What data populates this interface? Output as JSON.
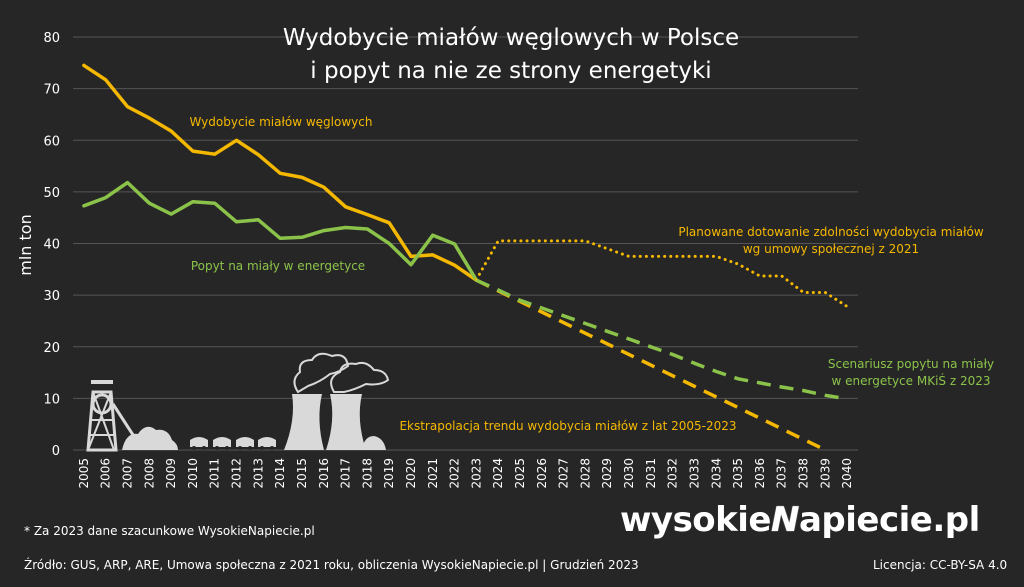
{
  "chart_data": {
    "type": "line",
    "title_lines": [
      "Wydobycie miałów węglowych w Polsce",
      "i popyt na nie ze strony energetyki"
    ],
    "ylabel": "mln ton",
    "xlabel": "",
    "ylim": [
      0,
      80
    ],
    "yticks": [
      0,
      10,
      20,
      30,
      40,
      50,
      60,
      70,
      80
    ],
    "x": [
      2005,
      2006,
      2007,
      2008,
      2009,
      2010,
      2011,
      2012,
      2013,
      2014,
      2015,
      2016,
      2017,
      2018,
      2019,
      2020,
      2021,
      2022,
      2023,
      2024,
      2025,
      2026,
      2027,
      2028,
      2029,
      2030,
      2031,
      2032,
      2033,
      2034,
      2035,
      2036,
      2037,
      2038,
      2039,
      2040
    ],
    "grid": true,
    "legend": "none",
    "series": [
      {
        "name": "Wydobycie miałów węglowych",
        "style": "solid",
        "color": "#f5b800",
        "x": [
          2005,
          2006,
          2007,
          2008,
          2009,
          2010,
          2011,
          2012,
          2013,
          2014,
          2015,
          2016,
          2017,
          2018,
          2019,
          2020,
          2021,
          2022,
          2023
        ],
        "values": [
          74.5,
          71.7,
          66.5,
          64.3,
          61.8,
          57.9,
          57.3,
          60.0,
          57.2,
          53.6,
          52.8,
          50.9,
          47.1,
          45.6,
          44.0,
          37.5,
          37.8,
          35.8,
          32.9
        ]
      },
      {
        "name": "Popyt na miały w energetyce",
        "style": "solid",
        "color": "#8bc34a",
        "x": [
          2005,
          2006,
          2007,
          2008,
          2009,
          2010,
          2011,
          2012,
          2013,
          2014,
          2015,
          2016,
          2017,
          2018,
          2019,
          2020,
          2021,
          2022,
          2023
        ],
        "values": [
          47.3,
          48.9,
          51.8,
          47.8,
          45.7,
          48.1,
          47.8,
          44.2,
          44.6,
          41.0,
          41.2,
          42.5,
          43.1,
          42.8,
          40.0,
          35.9,
          41.6,
          39.9,
          32.9
        ]
      },
      {
        "name": "Planowane dotowanie zdolności wydobycia miałów wg umowy społecznej z 2021",
        "style": "dotted",
        "color": "#f5b800",
        "x": [
          2023,
          2024,
          2025,
          2026,
          2027,
          2028,
          2029,
          2030,
          2031,
          2032,
          2033,
          2034,
          2035,
          2036,
          2037,
          2038,
          2039,
          2040
        ],
        "values": [
          33.0,
          40.5,
          40.5,
          40.5,
          40.5,
          40.5,
          39.0,
          37.5,
          37.5,
          37.5,
          37.5,
          37.5,
          36.0,
          33.7,
          33.7,
          30.5,
          30.5,
          27.8
        ]
      },
      {
        "name": "Ekstrapolacja trendu wydobycia miałów z lat 2005-2023",
        "style": "dashed",
        "color": "#f5b800",
        "x": [
          2023,
          2039
        ],
        "values": [
          32.9,
          0
        ]
      },
      {
        "name": "Scenariusz popytu na miały w energetyce MKiŚ z 2023",
        "style": "dashed",
        "color": "#8bc34a",
        "x": [
          2023,
          2024,
          2025,
          2026,
          2027,
          2028,
          2029,
          2030,
          2031,
          2032,
          2033,
          2034,
          2035,
          2036,
          2037,
          2038,
          2039,
          2040
        ],
        "values": [
          32.9,
          31.0,
          29.0,
          27.5,
          26.0,
          24.5,
          23.0,
          21.5,
          20.0,
          18.5,
          16.8,
          15.2,
          13.8,
          13.0,
          12.2,
          11.5,
          10.6,
          9.9
        ]
      }
    ],
    "annotations": [
      {
        "lines": [
          "Wydobycie miałów węglowych"
        ],
        "color": "#f5b800"
      },
      {
        "lines": [
          "Popyt na miały w energetyce"
        ],
        "color": "#8bc34a"
      },
      {
        "lines": [
          "Planowane dotowanie zdolności wydobycia miałów",
          "wg umowy społecznej z 2021"
        ],
        "color": "#f5b800"
      },
      {
        "lines": [
          "Scenariusz popytu na miały",
          "w energetyce MKiŚ z 2023"
        ],
        "color": "#8bc34a"
      },
      {
        "lines": [
          "Ekstrapolacja trendu wydobycia miałów z lat 2005-2023"
        ],
        "color": "#f5b800"
      }
    ]
  },
  "footer": {
    "note": "* Za 2023 dane szacunkowe WysokieNapiecie.pl",
    "source": "Źródło: GUS, ARP, ARE, Umowa społeczna z 2021 roku, obliczenia WysokieNapiecie.pl  |  Grudzień 2023",
    "license": "Licencja: CC-BY-SA 4.0"
  },
  "logo": {
    "part1": "wysokie",
    "part2": "N",
    "part3": "apiecie.pl"
  },
  "colors": {
    "background": "#262626",
    "grid": "#555555",
    "text": "#ffffff",
    "illustration": "#d9d9d9"
  },
  "illustration": {
    "icons": [
      "mine-shaft-icon",
      "coal-pile-icon",
      "coal-wagons-icon",
      "cooling-towers-icon",
      "steam-cloud-icon"
    ]
  }
}
